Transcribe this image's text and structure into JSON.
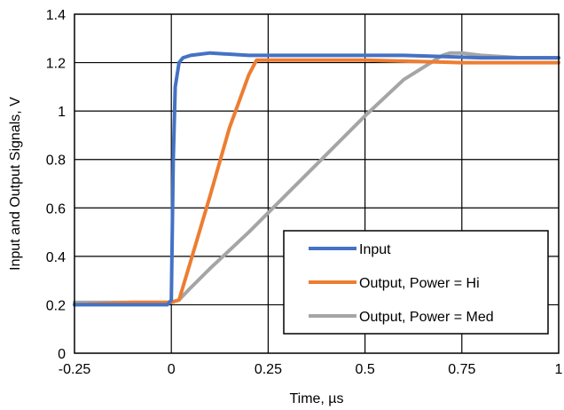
{
  "chart_data": {
    "type": "line",
    "xlabel": "Time, µs",
    "ylabel": "Input  and Output  Signals, V",
    "xlim": [
      -0.25,
      1.0
    ],
    "ylim": [
      0,
      1.4
    ],
    "x_ticks": [
      -0.25,
      0,
      0.25,
      0.5,
      0.75,
      1
    ],
    "x_tick_labels": [
      "-0.25",
      "0",
      "0.25",
      "0.5",
      "0.75",
      "1"
    ],
    "y_ticks": [
      0,
      0.2,
      0.4,
      0.6,
      0.8,
      1.0,
      1.2,
      1.4
    ],
    "y_tick_labels": [
      "0",
      "0.2",
      "0.4",
      "0.6",
      "0.8",
      "1",
      "1.2",
      "1.4"
    ],
    "grid": true,
    "legend_position": "bottom-right",
    "series": [
      {
        "name": "Input",
        "color": "#4472C4",
        "x": [
          -0.25,
          -0.1,
          -0.01,
          0.0,
          0.005,
          0.01,
          0.02,
          0.03,
          0.05,
          0.1,
          0.2,
          0.4,
          0.6,
          0.8,
          1.0
        ],
        "y": [
          0.2,
          0.2,
          0.2,
          0.22,
          0.8,
          1.1,
          1.2,
          1.22,
          1.23,
          1.24,
          1.23,
          1.23,
          1.23,
          1.22,
          1.22
        ]
      },
      {
        "name": "Output, Power = Hi",
        "color": "#ED7D31",
        "x": [
          -0.25,
          -0.1,
          0.0,
          0.02,
          0.05,
          0.1,
          0.15,
          0.2,
          0.22,
          0.3,
          0.5,
          0.75,
          1.0
        ],
        "y": [
          0.2,
          0.21,
          0.21,
          0.22,
          0.38,
          0.65,
          0.93,
          1.15,
          1.21,
          1.21,
          1.21,
          1.2,
          1.2
        ]
      },
      {
        "name": "Output, Power = Med",
        "color": "#A5A5A5",
        "x": [
          -0.25,
          0.0,
          0.02,
          0.05,
          0.1,
          0.2,
          0.3,
          0.4,
          0.5,
          0.6,
          0.7,
          0.72,
          0.75,
          0.8,
          0.9,
          1.0
        ],
        "y": [
          0.21,
          0.21,
          0.22,
          0.27,
          0.35,
          0.5,
          0.66,
          0.82,
          0.98,
          1.13,
          1.23,
          1.24,
          1.24,
          1.23,
          1.22,
          1.22
        ]
      }
    ]
  }
}
